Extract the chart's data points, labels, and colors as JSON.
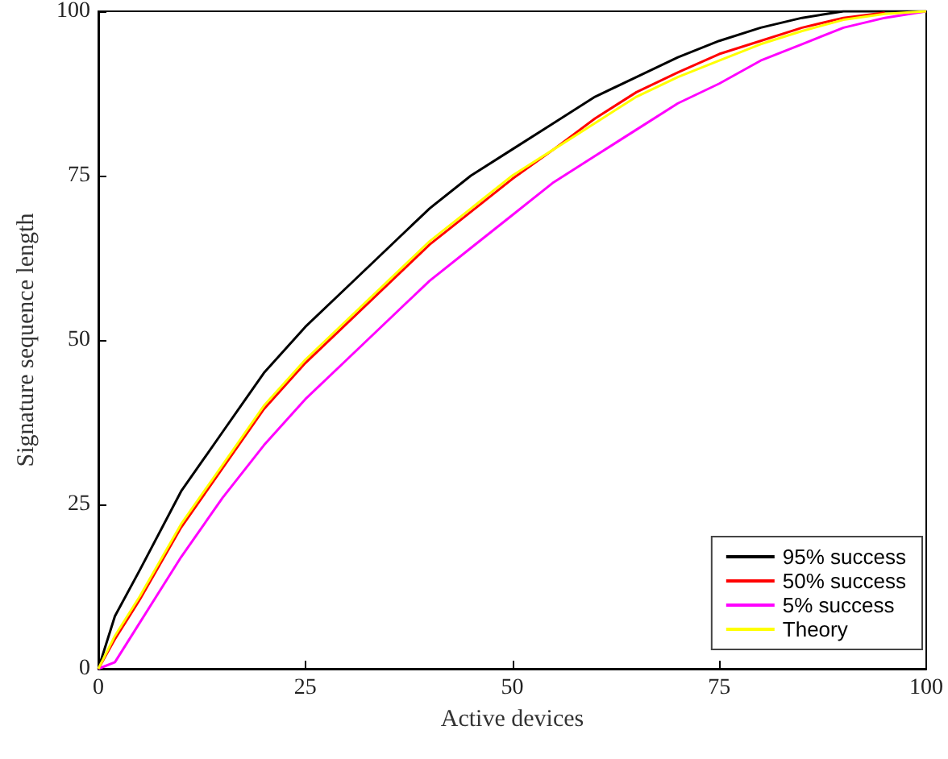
{
  "chart_data": {
    "type": "line",
    "xlabel": "Active devices",
    "ylabel": "Signature sequence length",
    "x": [
      0,
      2,
      5,
      10,
      15,
      20,
      25,
      30,
      35,
      40,
      45,
      50,
      55,
      60,
      65,
      70,
      75,
      80,
      85,
      90,
      95,
      100
    ],
    "series": [
      {
        "name": "95% success",
        "color": "#000000",
        "values": [
          0,
          8,
          15,
          27,
          36,
          45,
          52,
          58,
          64,
          70,
          75,
          79,
          83,
          87,
          90,
          93,
          95.5,
          97.5,
          99,
          100,
          100,
          100
        ]
      },
      {
        "name": "50% success",
        "color": "#ff0000",
        "values": [
          0,
          4.5,
          10.5,
          21.5,
          30.5,
          39.5,
          46.5,
          52.5,
          58.5,
          64.5,
          69.5,
          74.5,
          79,
          83.7,
          87.7,
          90.7,
          93.5,
          95.5,
          97.5,
          99,
          99.8,
          null
        ]
      },
      {
        "name": "5% success",
        "color": "#ff00ff",
        "values": [
          0,
          1,
          7,
          17,
          26,
          34,
          41,
          47,
          53,
          59,
          64,
          69,
          74,
          78,
          82,
          86,
          89,
          92.5,
          95,
          97.5,
          99,
          100
        ]
      },
      {
        "name": "Theory",
        "color": "#ffff00",
        "values": [
          0,
          5,
          11,
          22,
          31,
          40,
          47,
          53,
          59,
          65,
          70,
          75,
          79,
          83,
          87,
          90,
          92.5,
          95,
          97,
          98.7,
          99.6,
          100
        ]
      }
    ],
    "xlim": [
      0,
      100
    ],
    "xticks": [
      0,
      25,
      50,
      75,
      100
    ],
    "ylim": [
      0,
      100
    ],
    "yticks": [
      0,
      25,
      50,
      75,
      100
    ],
    "grid": false,
    "legend": "bottom right",
    "marker": "none",
    "line_style": "solid"
  }
}
